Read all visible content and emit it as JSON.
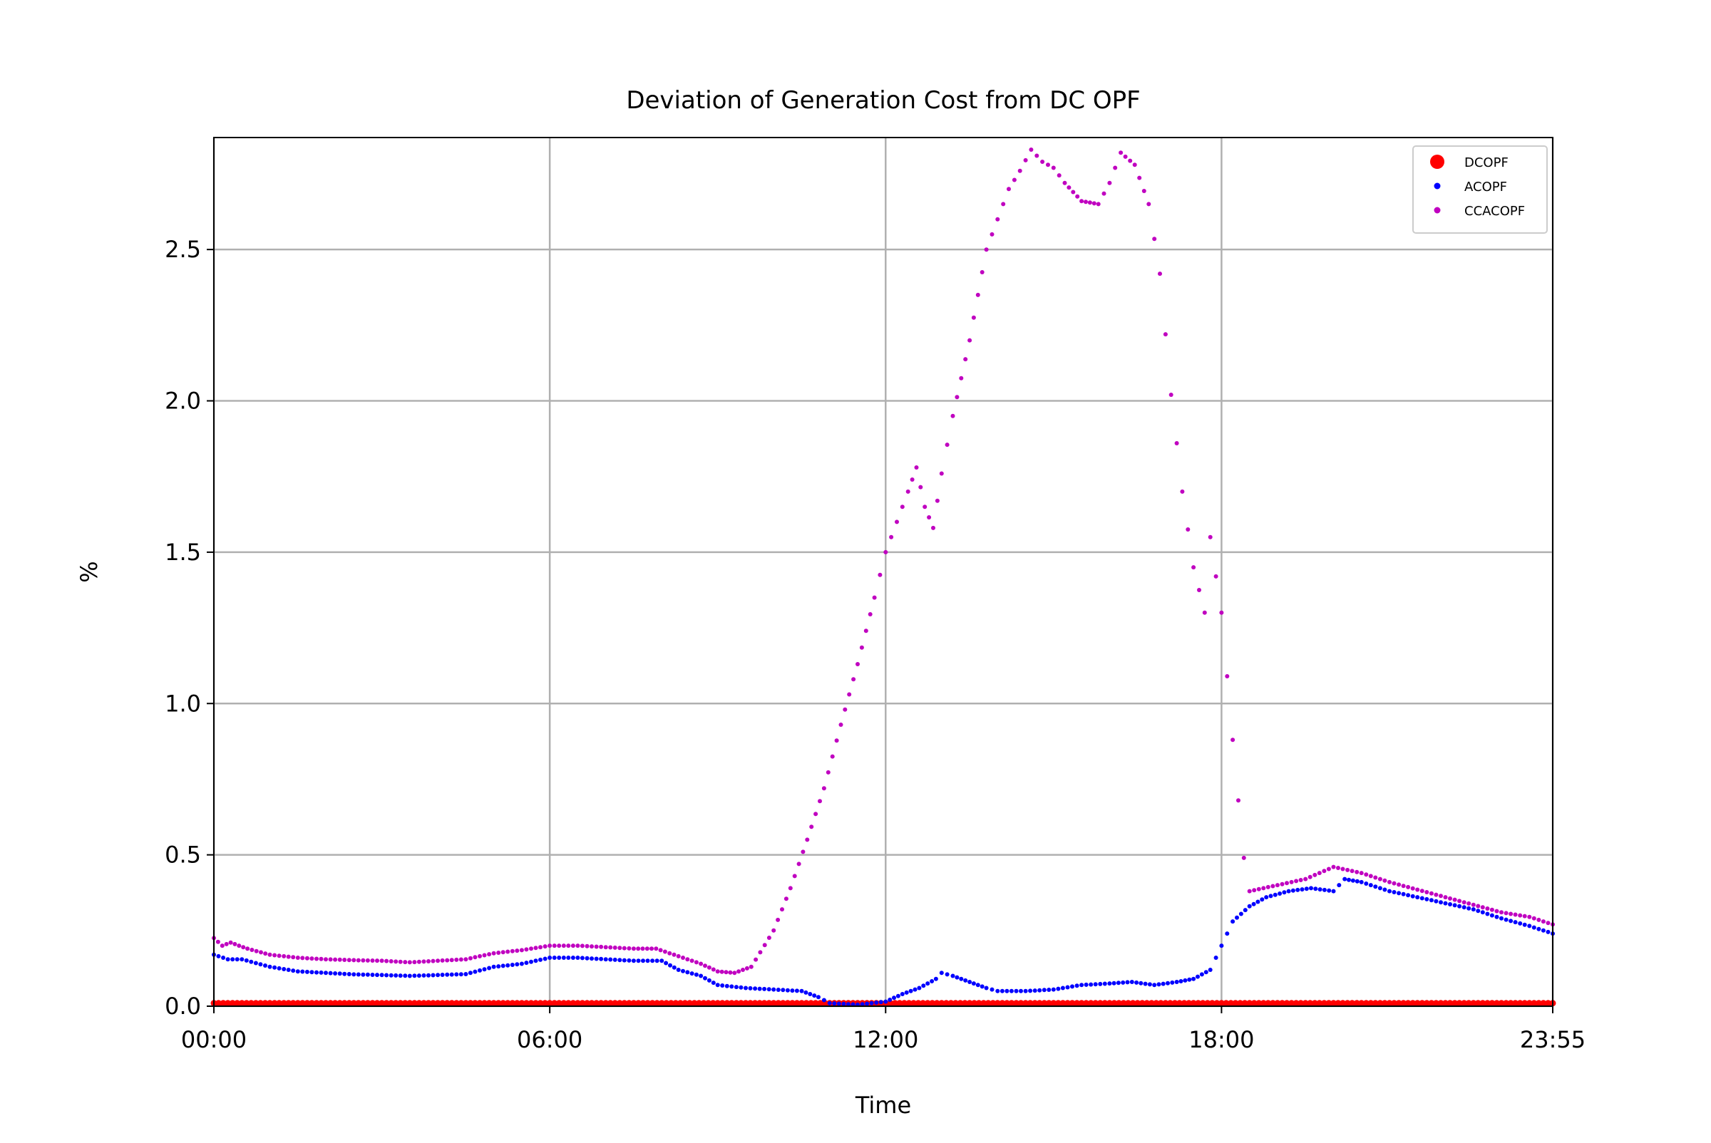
{
  "chart_data": {
    "type": "scatter",
    "title": "Deviation of Generation Cost from DC OPF",
    "xlabel": "Time",
    "ylabel": "%",
    "x_unit": "hours",
    "xlim": [
      0,
      23.9167
    ],
    "ylim": [
      0,
      2.87
    ],
    "x_ticks": [
      {
        "value": 0,
        "label": "00:00"
      },
      {
        "value": 6,
        "label": "06:00"
      },
      {
        "value": 12,
        "label": "12:00"
      },
      {
        "value": 18,
        "label": "18:00"
      },
      {
        "value": 23.9167,
        "label": "23:55"
      }
    ],
    "y_ticks": [
      {
        "value": 0.0,
        "label": "0.0"
      },
      {
        "value": 0.5,
        "label": "0.5"
      },
      {
        "value": 1.0,
        "label": "1.0"
      },
      {
        "value": 1.5,
        "label": "1.5"
      },
      {
        "value": 2.0,
        "label": "2.0"
      },
      {
        "value": 2.5,
        "label": "2.5"
      }
    ],
    "grid": true,
    "legend_position": "top-right",
    "sample_interval_minutes": 5,
    "series": [
      {
        "name": "DCOPF",
        "color": "#ff0000",
        "marker": "dot-large",
        "constant_value": 0.01,
        "points": []
      },
      {
        "name": "ACOPF",
        "color": "#0000ff",
        "marker": "dot-small",
        "constant_value": null,
        "points": [
          [
            0.0,
            0.17
          ],
          [
            0.25,
            0.155
          ],
          [
            0.5,
            0.155
          ],
          [
            1.0,
            0.13
          ],
          [
            1.5,
            0.115
          ],
          [
            2.0,
            0.11
          ],
          [
            2.5,
            0.105
          ],
          [
            3.0,
            0.103
          ],
          [
            3.5,
            0.1
          ],
          [
            4.0,
            0.103
          ],
          [
            4.5,
            0.106
          ],
          [
            5.0,
            0.13
          ],
          [
            5.5,
            0.14
          ],
          [
            6.0,
            0.16
          ],
          [
            6.5,
            0.16
          ],
          [
            7.0,
            0.155
          ],
          [
            7.5,
            0.15
          ],
          [
            8.0,
            0.15
          ],
          [
            8.3,
            0.12
          ],
          [
            8.7,
            0.1
          ],
          [
            9.0,
            0.07
          ],
          [
            9.5,
            0.06
          ],
          [
            10.0,
            0.055
          ],
          [
            10.5,
            0.05
          ],
          [
            10.8,
            0.03
          ],
          [
            11.0,
            0.01
          ],
          [
            11.5,
            0.005
          ],
          [
            12.0,
            0.015
          ],
          [
            12.3,
            0.04
          ],
          [
            12.6,
            0.06
          ],
          [
            12.9,
            0.09
          ],
          [
            13.0,
            0.11
          ],
          [
            13.2,
            0.1
          ],
          [
            13.5,
            0.08
          ],
          [
            13.8,
            0.06
          ],
          [
            14.0,
            0.05
          ],
          [
            14.5,
            0.05
          ],
          [
            15.0,
            0.055
          ],
          [
            15.5,
            0.07
          ],
          [
            16.0,
            0.075
          ],
          [
            16.4,
            0.08
          ],
          [
            16.8,
            0.07
          ],
          [
            17.2,
            0.08
          ],
          [
            17.5,
            0.09
          ],
          [
            17.8,
            0.12
          ],
          [
            18.0,
            0.2
          ],
          [
            18.2,
            0.28
          ],
          [
            18.5,
            0.33
          ],
          [
            18.8,
            0.36
          ],
          [
            19.2,
            0.38
          ],
          [
            19.6,
            0.39
          ],
          [
            20.0,
            0.38
          ],
          [
            20.2,
            0.42
          ],
          [
            20.5,
            0.41
          ],
          [
            21.0,
            0.38
          ],
          [
            21.5,
            0.36
          ],
          [
            22.0,
            0.34
          ],
          [
            22.5,
            0.32
          ],
          [
            23.0,
            0.29
          ],
          [
            23.5,
            0.265
          ],
          [
            23.9167,
            0.24
          ]
        ]
      },
      {
        "name": "CCACOPF",
        "color": "#c000c0",
        "marker": "dot-small",
        "constant_value": null,
        "points": [
          [
            0.0,
            0.225
          ],
          [
            0.15,
            0.2
          ],
          [
            0.3,
            0.21
          ],
          [
            0.6,
            0.19
          ],
          [
            1.0,
            0.17
          ],
          [
            1.5,
            0.16
          ],
          [
            2.0,
            0.155
          ],
          [
            2.5,
            0.152
          ],
          [
            3.0,
            0.15
          ],
          [
            3.5,
            0.145
          ],
          [
            4.0,
            0.15
          ],
          [
            4.5,
            0.155
          ],
          [
            5.0,
            0.175
          ],
          [
            5.5,
            0.185
          ],
          [
            6.0,
            0.2
          ],
          [
            6.5,
            0.2
          ],
          [
            7.0,
            0.195
          ],
          [
            7.5,
            0.19
          ],
          [
            7.9,
            0.19
          ],
          [
            8.3,
            0.165
          ],
          [
            8.7,
            0.14
          ],
          [
            9.0,
            0.115
          ],
          [
            9.3,
            0.11
          ],
          [
            9.6,
            0.13
          ],
          [
            10.0,
            0.25
          ],
          [
            10.3,
            0.39
          ],
          [
            10.6,
            0.55
          ],
          [
            10.9,
            0.72
          ],
          [
            11.2,
            0.93
          ],
          [
            11.5,
            1.13
          ],
          [
            11.8,
            1.35
          ],
          [
            12.0,
            1.5
          ],
          [
            12.2,
            1.6
          ],
          [
            12.4,
            1.7
          ],
          [
            12.55,
            1.78
          ],
          [
            12.7,
            1.65
          ],
          [
            12.85,
            1.58
          ],
          [
            13.0,
            1.76
          ],
          [
            13.2,
            1.95
          ],
          [
            13.5,
            2.2
          ],
          [
            13.8,
            2.5
          ],
          [
            14.0,
            2.6
          ],
          [
            14.2,
            2.7
          ],
          [
            14.4,
            2.76
          ],
          [
            14.6,
            2.83
          ],
          [
            14.8,
            2.79
          ],
          [
            15.0,
            2.77
          ],
          [
            15.2,
            2.72
          ],
          [
            15.5,
            2.66
          ],
          [
            15.8,
            2.65
          ],
          [
            16.0,
            2.72
          ],
          [
            16.2,
            2.82
          ],
          [
            16.45,
            2.78
          ],
          [
            16.7,
            2.65
          ],
          [
            16.9,
            2.42
          ],
          [
            17.1,
            2.02
          ],
          [
            17.3,
            1.7
          ],
          [
            17.5,
            1.45
          ],
          [
            17.7,
            1.3
          ],
          [
            17.8,
            1.55
          ],
          [
            17.9,
            1.42
          ],
          [
            18.0,
            1.3
          ],
          [
            18.1,
            1.09
          ],
          [
            18.2,
            0.88
          ],
          [
            18.3,
            0.68
          ],
          [
            18.4,
            0.49
          ],
          [
            18.5,
            0.38
          ],
          [
            19.0,
            0.4
          ],
          [
            19.5,
            0.42
          ],
          [
            20.0,
            0.46
          ],
          [
            20.5,
            0.44
          ],
          [
            21.0,
            0.41
          ],
          [
            21.5,
            0.385
          ],
          [
            22.0,
            0.36
          ],
          [
            22.5,
            0.335
          ],
          [
            23.0,
            0.31
          ],
          [
            23.5,
            0.295
          ],
          [
            23.9167,
            0.27
          ]
        ]
      }
    ]
  }
}
